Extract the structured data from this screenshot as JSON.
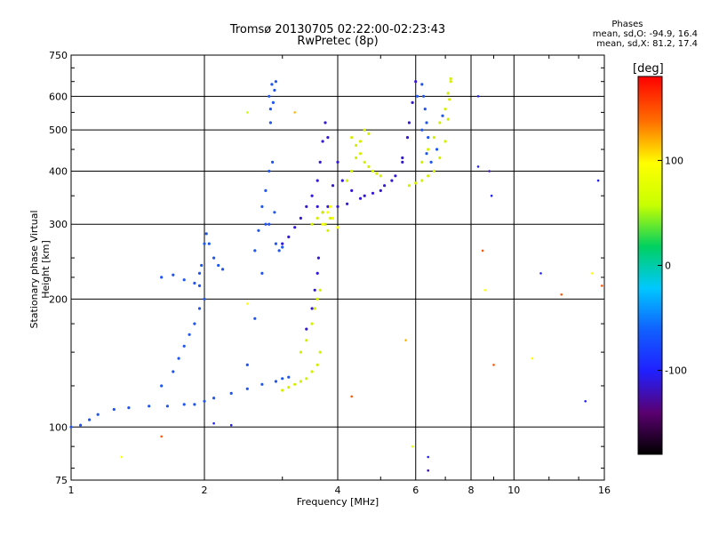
{
  "chart_data": {
    "type": "scatter",
    "title": "Tromsø 20130705 02:22:00-02:23:43",
    "subtitle": "RwPretec (8p)",
    "xlabel": "Frequency [MHz]",
    "ylabel": "Stationary phase Virtual Height [km]",
    "x_scale": "log",
    "y_scale": "log",
    "xlim": [
      1,
      16
    ],
    "ylim": [
      75,
      750
    ],
    "x_ticks": [
      1,
      2,
      4,
      6,
      8,
      10,
      16
    ],
    "x_tick_labels": [
      "1",
      "2",
      "4",
      "6",
      "8",
      "10",
      "16"
    ],
    "y_ticks": [
      75,
      100,
      200,
      300,
      400,
      500,
      600,
      750
    ],
    "y_tick_labels": [
      "75",
      "100",
      "200",
      "300",
      "400",
      "500",
      "600",
      "750"
    ],
    "grid": true,
    "stats": {
      "heading": "Phases",
      "line_o": "mean, sd,O: -94.9, 16.4",
      "line_x": "mean, sd,X:  81.2, 17.4"
    },
    "colorbar": {
      "label": "[deg]",
      "range": [
        -180,
        180
      ],
      "ticks": [
        100,
        0,
        -100
      ],
      "tick_labels": [
        "100",
        "0",
        "-100"
      ]
    },
    "traces": [
      {
        "phase": -100,
        "x": [
          1.0,
          1.05,
          1.1,
          1.15,
          1.25,
          1.35,
          1.5,
          1.65,
          1.8,
          1.9,
          2.0,
          2.1,
          2.3,
          2.5,
          2.7,
          2.9,
          3.0,
          3.1
        ],
        "y": [
          100,
          101,
          104,
          107,
          110,
          111,
          112,
          112,
          113,
          113,
          115,
          117,
          120,
          123,
          126,
          128,
          130,
          131
        ]
      },
      {
        "phase": -100,
        "x": [
          1.6,
          1.7,
          1.75,
          1.8,
          1.85,
          1.9,
          1.95,
          2.0
        ],
        "y": [
          125,
          135,
          145,
          155,
          165,
          175,
          190,
          200
        ]
      },
      {
        "phase": -100,
        "x": [
          1.95,
          1.97,
          2.0,
          2.02,
          2.05,
          2.1,
          2.15,
          2.2
        ],
        "y": [
          215,
          240,
          270,
          285,
          270,
          250,
          240,
          235
        ]
      },
      {
        "phase": -100,
        "x": [
          1.6,
          1.7,
          1.8,
          1.9,
          1.95
        ],
        "y": [
          225,
          228,
          222,
          218,
          230
        ]
      },
      {
        "phase": -100,
        "x": [
          2.5,
          2.6,
          2.7,
          2.75,
          2.8,
          2.82,
          2.85,
          2.88,
          2.9,
          2.95,
          3.0
        ],
        "y": [
          140,
          180,
          230,
          300,
          400,
          520,
          420,
          320,
          270,
          260,
          265
        ]
      },
      {
        "phase": -100,
        "x": [
          2.8,
          2.82,
          2.84,
          2.86,
          2.88,
          2.9
        ],
        "y": [
          600,
          560,
          640,
          580,
          620,
          650
        ]
      },
      {
        "phase": -100,
        "x": [
          2.6,
          2.65,
          2.7,
          2.75,
          2.8
        ],
        "y": [
          260,
          290,
          330,
          360,
          300
        ]
      },
      {
        "phase": -120,
        "x": [
          3.0,
          3.1,
          3.2,
          3.3,
          3.4,
          3.5,
          3.6,
          3.65,
          3.7,
          3.75,
          3.8
        ],
        "y": [
          270,
          280,
          295,
          310,
          330,
          350,
          380,
          420,
          470,
          520,
          480
        ]
      },
      {
        "phase": -120,
        "x": [
          3.4,
          3.5,
          3.55,
          3.6,
          3.62
        ],
        "y": [
          170,
          190,
          210,
          230,
          250
        ]
      },
      {
        "phase": -115,
        "x": [
          3.6,
          3.7,
          3.8,
          3.9,
          4.0,
          4.1,
          4.3,
          4.6,
          5.0,
          5.3,
          5.6,
          5.8
        ],
        "y": [
          330,
          320,
          330,
          370,
          420,
          380,
          360,
          350,
          360,
          380,
          430,
          520
        ]
      },
      {
        "phase": -115,
        "x": [
          4.0,
          4.2,
          4.5,
          4.8,
          5.1,
          5.4,
          5.6,
          5.75,
          5.9,
          6.0
        ],
        "y": [
          330,
          335,
          345,
          355,
          370,
          390,
          420,
          480,
          580,
          650
        ]
      },
      {
        "phase": -110,
        "x": [
          6.05,
          6.2,
          6.35,
          6.5,
          6.7,
          6.9
        ],
        "y": [
          600,
          500,
          440,
          420,
          450,
          540
        ]
      },
      {
        "phase": -110,
        "x": [
          6.2,
          6.25,
          6.3,
          6.35,
          6.4
        ],
        "y": [
          640,
          600,
          560,
          520,
          480
        ]
      },
      {
        "phase": 110,
        "x": [
          3.0,
          3.1,
          3.2,
          3.3,
          3.4,
          3.5,
          3.6,
          3.65
        ],
        "y": [
          122,
          124,
          126,
          128,
          130,
          135,
          140,
          150
        ]
      },
      {
        "phase": 110,
        "x": [
          3.3,
          3.4,
          3.5,
          3.55,
          3.6,
          3.65
        ],
        "y": [
          150,
          160,
          175,
          190,
          200,
          210
        ]
      },
      {
        "phase": 110,
        "x": [
          3.5,
          3.6,
          3.7,
          3.75,
          3.8,
          3.85
        ],
        "y": [
          300,
          310,
          320,
          300,
          290,
          310
        ]
      },
      {
        "phase": 110,
        "x": [
          4.3,
          4.4,
          4.5,
          4.6,
          4.7,
          4.8,
          4.9,
          5.0
        ],
        "y": [
          480,
          460,
          440,
          420,
          410,
          400,
          395,
          390
        ]
      },
      {
        "phase": 110,
        "x": [
          4.2,
          4.3,
          4.4,
          4.5,
          4.6,
          4.7
        ],
        "y": [
          380,
          400,
          430,
          470,
          500,
          490
        ]
      },
      {
        "phase": 110,
        "x": [
          5.8,
          6.0,
          6.2,
          6.4,
          6.6,
          6.8,
          7.0,
          7.1,
          7.15,
          7.2
        ],
        "y": [
          370,
          375,
          380,
          390,
          400,
          430,
          470,
          530,
          590,
          650
        ]
      },
      {
        "phase": 110,
        "x": [
          6.2,
          6.4,
          6.6,
          6.8,
          7.0,
          7.1,
          7.2
        ],
        "y": [
          420,
          450,
          480,
          520,
          560,
          610,
          660
        ]
      },
      {
        "phase": 95,
        "x": [
          3.7,
          3.8,
          3.9,
          4.0,
          3.85
        ],
        "y": [
          300,
          320,
          310,
          295,
          330
        ]
      }
    ],
    "outliers": [
      {
        "x": 1.3,
        "y": 85,
        "phase": 100
      },
      {
        "x": 1.6,
        "y": 95,
        "phase": 150
      },
      {
        "x": 2.1,
        "y": 102,
        "phase": -100
      },
      {
        "x": 2.3,
        "y": 101,
        "phase": -100
      },
      {
        "x": 2.5,
        "y": 195,
        "phase": 100
      },
      {
        "x": 2.5,
        "y": 550,
        "phase": 60
      },
      {
        "x": 3.2,
        "y": 550,
        "phase": 120
      },
      {
        "x": 4.3,
        "y": 118,
        "phase": 150
      },
      {
        "x": 5.7,
        "y": 160,
        "phase": 120
      },
      {
        "x": 5.9,
        "y": 90,
        "phase": 80
      },
      {
        "x": 6.4,
        "y": 85,
        "phase": -100
      },
      {
        "x": 6.4,
        "y": 79,
        "phase": -120
      },
      {
        "x": 8.3,
        "y": 600,
        "phase": -100
      },
      {
        "x": 8.3,
        "y": 410,
        "phase": -100
      },
      {
        "x": 8.5,
        "y": 260,
        "phase": 150
      },
      {
        "x": 8.6,
        "y": 210,
        "phase": 100
      },
      {
        "x": 8.8,
        "y": 400,
        "phase": -120
      },
      {
        "x": 8.9,
        "y": 350,
        "phase": -100
      },
      {
        "x": 9.0,
        "y": 140,
        "phase": 150
      },
      {
        "x": 11.0,
        "y": 145,
        "phase": 100
      },
      {
        "x": 11.5,
        "y": 230,
        "phase": -100
      },
      {
        "x": 12.8,
        "y": 205,
        "phase": 150
      },
      {
        "x": 14.5,
        "y": 115,
        "phase": -100
      },
      {
        "x": 15.0,
        "y": 230,
        "phase": 100
      },
      {
        "x": 15.5,
        "y": 380,
        "phase": -100
      },
      {
        "x": 15.8,
        "y": 215,
        "phase": 150
      }
    ]
  }
}
